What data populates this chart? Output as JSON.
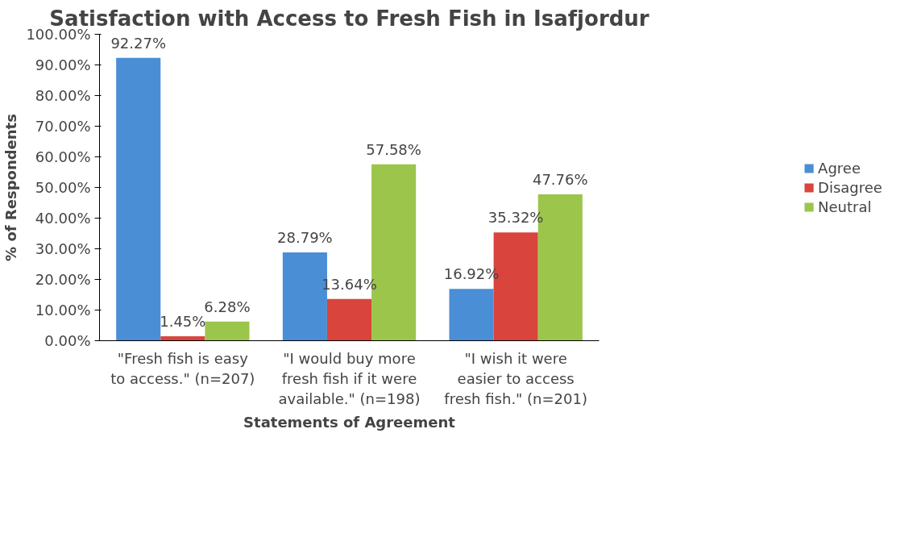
{
  "chart_data": {
    "type": "bar",
    "title": "Satisfaction with Access to Fresh Fish in Isafjordur",
    "xlabel": "Statements of Agreement",
    "ylabel": "% of Respondents",
    "categories": [
      "\"Fresh fish is easy to access.\" (n=207)",
      "\"I would buy more fresh fish if it were available.\" (n=198)",
      "\"I wish it were easier to access fresh fish.\" (n=201)"
    ],
    "series": [
      {
        "name": "Agree",
        "color": "#4a8ed6",
        "values": [
          92.27,
          28.79,
          16.92
        ],
        "value_labels": [
          "92.27%",
          "28.79%",
          "16.92%"
        ]
      },
      {
        "name": "Disagree",
        "color": "#d9443c",
        "values": [
          1.45,
          13.64,
          35.32
        ],
        "value_labels": [
          "1.45%",
          "13.64%",
          "35.32%"
        ]
      },
      {
        "name": "Neutral",
        "color": "#9cc54c",
        "values": [
          6.28,
          57.58,
          47.76
        ],
        "value_labels": [
          "6.28%",
          "57.58%",
          "47.76%"
        ]
      }
    ],
    "ylim": [
      0,
      100
    ],
    "yticks": [
      {
        "value": 0,
        "label": "0.00%"
      },
      {
        "value": 10,
        "label": "10.00%"
      },
      {
        "value": 20,
        "label": "20.00%"
      },
      {
        "value": 30,
        "label": "30.00%"
      },
      {
        "value": 40,
        "label": "40.00%"
      },
      {
        "value": 50,
        "label": "50.00%"
      },
      {
        "value": 60,
        "label": "60.00%"
      },
      {
        "value": 70,
        "label": "70.00%"
      },
      {
        "value": 80,
        "label": "80.00%"
      },
      {
        "value": 90,
        "label": "90.00%"
      },
      {
        "value": 100,
        "label": "100.00%"
      }
    ],
    "grid": false,
    "legend": "right"
  }
}
